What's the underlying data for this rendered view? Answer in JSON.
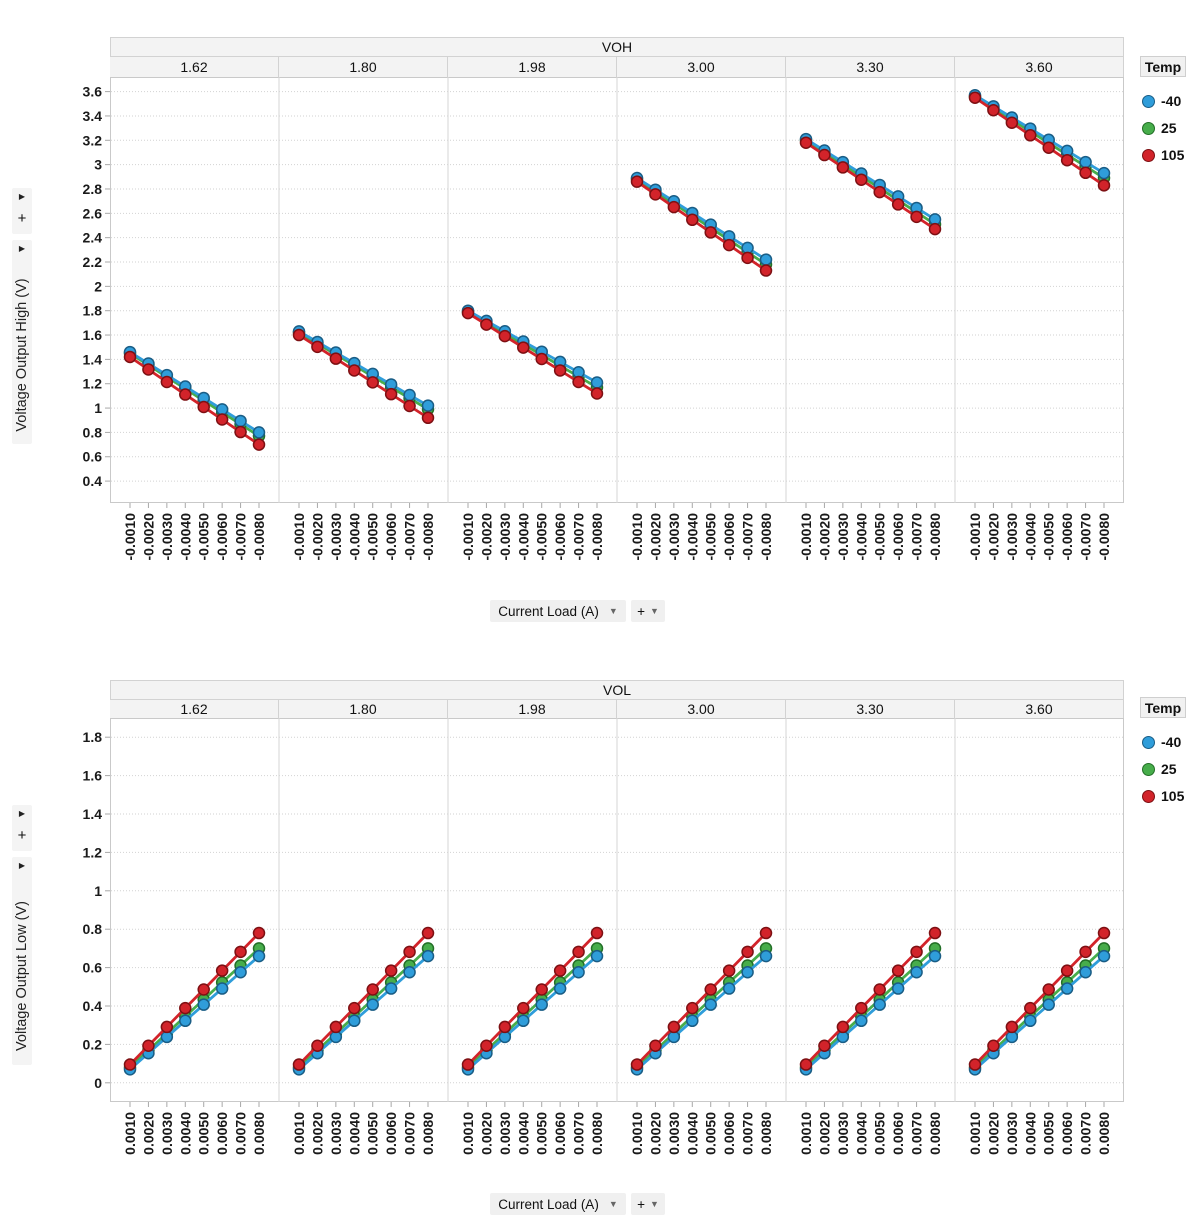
{
  "controls": {
    "collapse_chevron": "▶",
    "add_button": "+",
    "dropdown_caret": "▼"
  },
  "chart_data": [
    {
      "type": "line",
      "title": "VOH",
      "ylabel": "Voltage Output High (V)",
      "xlabel": "Current Load (A)",
      "facets": [
        "1.62",
        "1.80",
        "1.98",
        "3.00",
        "3.30",
        "3.60"
      ],
      "x": [
        -0.001,
        -0.002,
        -0.003,
        -0.004,
        -0.005,
        -0.006,
        -0.007,
        -0.008
      ],
      "x_tick_labels": [
        "-0.0010",
        "-0.0020",
        "-0.0030",
        "-0.0040",
        "-0.0050",
        "-0.0060",
        "-0.0070",
        "-0.0080"
      ],
      "y_ticks": [
        0.4,
        0.6,
        0.8,
        1,
        1.2,
        1.4,
        1.6,
        1.8,
        2,
        2.2,
        2.4,
        2.6,
        2.8,
        3,
        3.2,
        3.4,
        3.6
      ],
      "ylim": [
        0.22,
        3.72
      ],
      "grid": "horizontal-dotted",
      "legend_position": "right",
      "legend_title": "Temp",
      "series": [
        {
          "name": "25",
          "color": "#47ad4b",
          "edge": "#236f27",
          "values_by_facet": [
            [
              1.45,
              1.353,
              1.256,
              1.159,
              1.061,
              0.964,
              0.867,
              0.77
            ],
            [
              1.62,
              1.53,
              1.44,
              1.35,
              1.26,
              1.17,
              1.08,
              0.99
            ],
            [
              1.79,
              1.701,
              1.613,
              1.524,
              1.436,
              1.347,
              1.259,
              1.17
            ],
            [
              2.88,
              2.78,
              2.68,
              2.58,
              2.48,
              2.38,
              2.28,
              2.18
            ],
            [
              3.2,
              3.101,
              3.003,
              2.904,
              2.806,
              2.707,
              2.609,
              2.51
            ],
            [
              3.56,
              3.464,
              3.369,
              3.273,
              3.177,
              3.081,
              2.986,
              2.89
            ]
          ]
        },
        {
          "name": "-40",
          "color": "#2f9dda",
          "edge": "#1a5d85",
          "values_by_facet": [
            [
              1.46,
              1.366,
              1.271,
              1.177,
              1.083,
              0.989,
              0.894,
              0.8
            ],
            [
              1.63,
              1.543,
              1.456,
              1.369,
              1.281,
              1.194,
              1.107,
              1.02
            ],
            [
              1.8,
              1.716,
              1.631,
              1.547,
              1.463,
              1.379,
              1.294,
              1.21
            ],
            [
              2.89,
              2.794,
              2.699,
              2.603,
              2.507,
              2.411,
              2.316,
              2.22
            ],
            [
              3.21,
              3.116,
              3.021,
              2.927,
              2.833,
              2.739,
              2.644,
              2.55
            ],
            [
              3.57,
              3.479,
              3.387,
              3.296,
              3.204,
              3.113,
              3.021,
              2.93
            ]
          ]
        },
        {
          "name": "105",
          "color": "#d2232a",
          "edge": "#7d1013",
          "values_by_facet": [
            [
              1.42,
              1.317,
              1.214,
              1.111,
              1.009,
              0.906,
              0.803,
              0.7
            ],
            [
              1.6,
              1.503,
              1.406,
              1.309,
              1.211,
              1.114,
              1.017,
              0.92
            ],
            [
              1.78,
              1.686,
              1.591,
              1.497,
              1.403,
              1.309,
              1.214,
              1.12
            ],
            [
              2.86,
              2.756,
              2.651,
              2.547,
              2.443,
              2.339,
              2.234,
              2.13
            ],
            [
              3.18,
              3.079,
              2.977,
              2.876,
              2.774,
              2.673,
              2.571,
              2.47
            ],
            [
              3.55,
              3.447,
              3.344,
              3.241,
              3.139,
              3.036,
              2.933,
              2.83
            ]
          ]
        }
      ],
      "legend_order": [
        "-40",
        "25",
        "105"
      ]
    },
    {
      "type": "line",
      "title": "VOL",
      "ylabel": "Voltage Output Low (V)",
      "xlabel": "Current Load (A)",
      "facets": [
        "1.62",
        "1.80",
        "1.98",
        "3.00",
        "3.30",
        "3.60"
      ],
      "x": [
        0.001,
        0.002,
        0.003,
        0.004,
        0.005,
        0.006,
        0.007,
        0.008
      ],
      "x_tick_labels": [
        "0.0010",
        "0.0020",
        "0.0030",
        "0.0040",
        "0.0050",
        "0.0060",
        "0.0070",
        "0.0080"
      ],
      "y_ticks": [
        0,
        0.2,
        0.4,
        0.6,
        0.8,
        1,
        1.2,
        1.4,
        1.6,
        1.8
      ],
      "ylim": [
        -0.1,
        1.9
      ],
      "grid": "horizontal-dotted",
      "legend_position": "right",
      "legend_title": "Temp",
      "series": [
        {
          "name": "25",
          "color": "#47ad4b",
          "edge": "#236f27",
          "values_by_facet": [
            [
              0.08,
              0.169,
              0.257,
              0.346,
              0.434,
              0.523,
              0.611,
              0.7
            ],
            [
              0.08,
              0.169,
              0.257,
              0.346,
              0.434,
              0.523,
              0.611,
              0.7
            ],
            [
              0.08,
              0.169,
              0.257,
              0.346,
              0.434,
              0.523,
              0.611,
              0.7
            ],
            [
              0.08,
              0.169,
              0.257,
              0.346,
              0.434,
              0.523,
              0.611,
              0.7
            ],
            [
              0.08,
              0.169,
              0.257,
              0.346,
              0.434,
              0.523,
              0.611,
              0.7
            ],
            [
              0.08,
              0.169,
              0.257,
              0.346,
              0.434,
              0.523,
              0.611,
              0.7
            ]
          ]
        },
        {
          "name": "-40",
          "color": "#2f9dda",
          "edge": "#1a5d85",
          "values_by_facet": [
            [
              0.07,
              0.154,
              0.239,
              0.323,
              0.407,
              0.491,
              0.576,
              0.66
            ],
            [
              0.07,
              0.154,
              0.239,
              0.323,
              0.407,
              0.491,
              0.576,
              0.66
            ],
            [
              0.07,
              0.154,
              0.239,
              0.323,
              0.407,
              0.491,
              0.576,
              0.66
            ],
            [
              0.07,
              0.154,
              0.239,
              0.323,
              0.407,
              0.491,
              0.576,
              0.66
            ],
            [
              0.07,
              0.154,
              0.239,
              0.323,
              0.407,
              0.491,
              0.576,
              0.66
            ],
            [
              0.07,
              0.154,
              0.239,
              0.323,
              0.407,
              0.491,
              0.576,
              0.66
            ]
          ]
        },
        {
          "name": "105",
          "color": "#d2232a",
          "edge": "#7d1013",
          "values_by_facet": [
            [
              0.095,
              0.193,
              0.291,
              0.389,
              0.486,
              0.584,
              0.682,
              0.78
            ],
            [
              0.095,
              0.193,
              0.291,
              0.389,
              0.486,
              0.584,
              0.682,
              0.78
            ],
            [
              0.095,
              0.193,
              0.291,
              0.389,
              0.486,
              0.584,
              0.682,
              0.78
            ],
            [
              0.095,
              0.193,
              0.291,
              0.389,
              0.486,
              0.584,
              0.682,
              0.78
            ],
            [
              0.095,
              0.193,
              0.291,
              0.389,
              0.486,
              0.584,
              0.682,
              0.78
            ],
            [
              0.095,
              0.193,
              0.291,
              0.389,
              0.486,
              0.584,
              0.682,
              0.78
            ]
          ]
        }
      ],
      "legend_order": [
        "-40",
        "25",
        "105"
      ]
    }
  ]
}
